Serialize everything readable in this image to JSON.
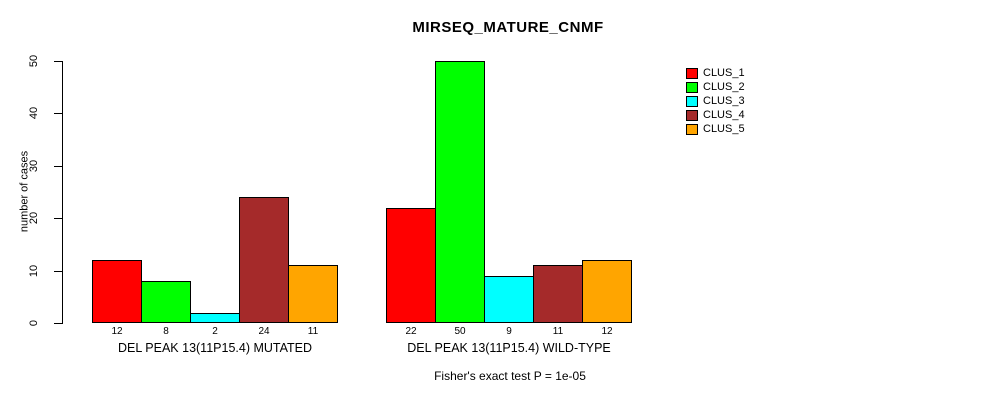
{
  "chart_data": {
    "type": "bar",
    "title": "MIRSEQ_MATURE_CNMF",
    "ylabel": "number of cases",
    "xlabel": "",
    "ylim": [
      0,
      50
    ],
    "yticks": [
      0,
      10,
      20,
      30,
      40,
      50
    ],
    "grid": false,
    "legend_position": "top-right",
    "legend": [
      {
        "name": "CLUS_1",
        "color": "#FF0000"
      },
      {
        "name": "CLUS_2",
        "color": "#00FF00"
      },
      {
        "name": "CLUS_3",
        "color": "#00FFFF"
      },
      {
        "name": "CLUS_4",
        "color": "#A52A2A"
      },
      {
        "name": "CLUS_5",
        "color": "#FFA500"
      }
    ],
    "groups": [
      {
        "label": "DEL PEAK 13(11P15.4) MUTATED",
        "values": [
          12,
          8,
          2,
          24,
          11
        ]
      },
      {
        "label": "DEL PEAK 13(11P15.4) WILD-TYPE",
        "values": [
          22,
          50,
          9,
          11,
          12
        ]
      }
    ],
    "bar_value_labels": [
      [
        12,
        8,
        2,
        24,
        11
      ],
      [
        22,
        50,
        9,
        11,
        12
      ]
    ],
    "annotation": "Fisher's exact test P = 1e-05"
  }
}
